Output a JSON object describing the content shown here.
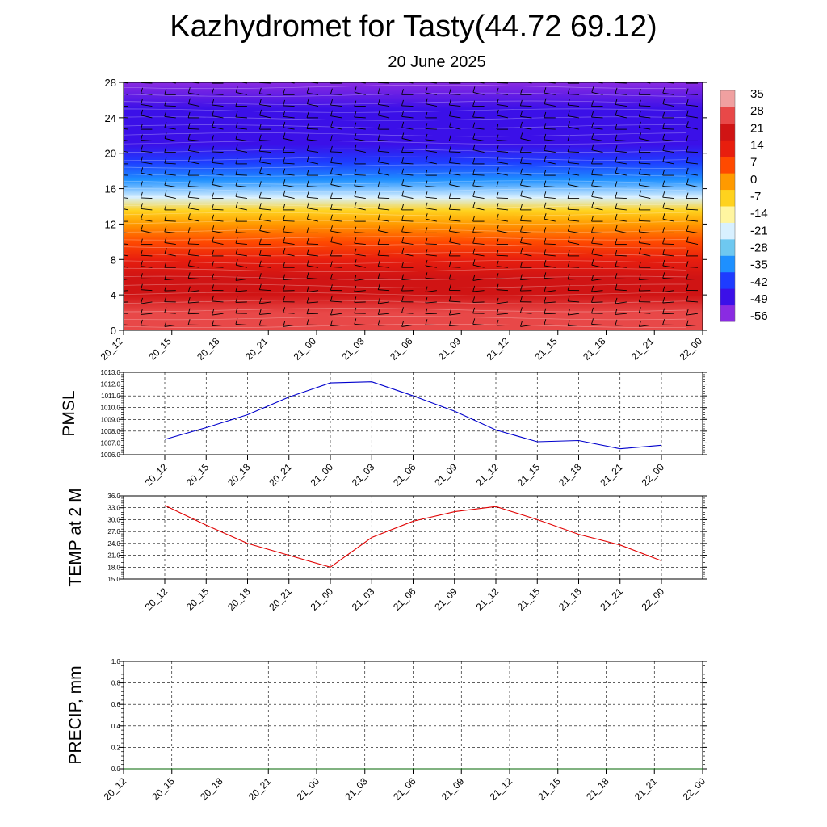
{
  "title": "Kazhydromet for Tasty(44.72 69.12)",
  "subtitle": "20 June 2025",
  "chart_data": [
    {
      "type": "heatmap",
      "description_vars": "temperature cross-section with wind barbs",
      "x_ticks": [
        "20_12",
        "20_15",
        "20_18",
        "20_21",
        "21_00",
        "21_03",
        "21_06",
        "21_09",
        "21_12",
        "21_15",
        "21_18",
        "21_21",
        "22_00"
      ],
      "y_ticks": [
        0,
        4,
        8,
        12,
        16,
        20,
        24,
        28
      ],
      "ylim": [
        0,
        28
      ],
      "colorbar_labels": [
        35,
        28,
        21,
        14,
        7,
        0,
        -7,
        -14,
        -21,
        -28,
        -35,
        -42,
        -49,
        -56
      ],
      "colorbar_range": [
        -60,
        37
      ],
      "colors": [
        "#8a2be2",
        "#3b10e8",
        "#1e3cff",
        "#1e90ff",
        "#6ec8f0",
        "#d8f0ff",
        "#fff5a0",
        "#ffd21e",
        "#ff9a00",
        "#ff4a00",
        "#e81e0e",
        "#d01414",
        "#e84848",
        "#f0a0a0"
      ],
      "temperature_profile": [
        {
          "z": 0,
          "t": 30
        },
        {
          "z": 2,
          "t": 28
        },
        {
          "z": 4,
          "t": 25
        },
        {
          "z": 6,
          "t": 21
        },
        {
          "z": 8,
          "t": 16
        },
        {
          "z": 10,
          "t": 8
        },
        {
          "z": 12,
          "t": 1
        },
        {
          "z": 13.5,
          "t": -10
        },
        {
          "z": 15,
          "t": -22
        },
        {
          "z": 17,
          "t": -36
        },
        {
          "z": 19,
          "t": -48
        },
        {
          "z": 21,
          "t": -56
        },
        {
          "z": 23,
          "t": -52
        },
        {
          "z": 25,
          "t": -56
        },
        {
          "z": 28,
          "t": -60
        }
      ]
    },
    {
      "type": "line",
      "ylabel": "PMSL",
      "x": [
        "20_12",
        "20_15",
        "20_18",
        "20_21",
        "21_00",
        "21_03",
        "21_06",
        "21_09",
        "21_12",
        "21_15",
        "21_18",
        "21_21",
        "22_00"
      ],
      "series": [
        {
          "color": "#0000cc",
          "values": [
            1007.3,
            1008.3,
            1009.4,
            1010.9,
            1012.1,
            1012.2,
            1011.0,
            1009.7,
            1008.1,
            1007.1,
            1007.2,
            1006.5,
            1006.8
          ]
        }
      ],
      "ylim": [
        1006.0,
        1013.0
      ],
      "y_ticks": [
        "1006.0",
        "1007.0",
        "1008.0",
        "1009.0",
        "1010.0",
        "1011.0",
        "1012.0",
        "1013.0"
      ],
      "grid": true
    },
    {
      "type": "line",
      "ylabel": "TEMP at 2 M",
      "x": [
        "20_12",
        "20_15",
        "20_18",
        "20_21",
        "21_00",
        "21_03",
        "21_06",
        "21_09",
        "21_12",
        "21_15",
        "21_18",
        "21_21",
        "22_00"
      ],
      "series": [
        {
          "color": "#e00000",
          "values": [
            33.6,
            28.6,
            24.0,
            21.0,
            18.0,
            25.5,
            29.6,
            32.0,
            33.3,
            30.0,
            26.3,
            23.6,
            19.6
          ]
        }
      ],
      "ylim": [
        15.0,
        36.0
      ],
      "y_ticks": [
        "15.0",
        "18.0",
        "21.0",
        "24.0",
        "27.0",
        "30.0",
        "33.0",
        "36.0"
      ],
      "grid": true
    },
    {
      "type": "line",
      "ylabel": "PRECIP, mm",
      "x": [
        "20_12",
        "20_15",
        "20_18",
        "20_21",
        "21_00",
        "21_03",
        "21_06",
        "21_09",
        "21_12",
        "21_15",
        "21_18",
        "21_21",
        "22_00"
      ],
      "series": [
        {
          "color": "#006400",
          "values": [
            0,
            0,
            0,
            0,
            0,
            0,
            0,
            0,
            0,
            0,
            0,
            0,
            0
          ]
        }
      ],
      "ylim": [
        0.0,
        1.0
      ],
      "y_ticks": [
        "0.0",
        "0.2",
        "0.4",
        "0.6",
        "0.8",
        "1.0"
      ],
      "grid": true
    }
  ]
}
